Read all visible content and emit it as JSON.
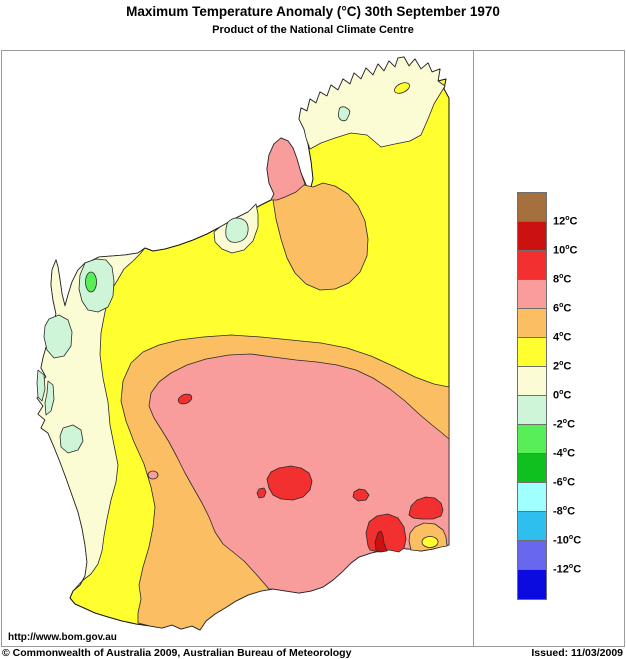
{
  "header": {
    "title": "Maximum Temperature Anomaly (°C)  30th September 1970",
    "subtitle": "Product of the National Climate Centre"
  },
  "map_panel": {
    "url_text": "http://www.bom.gov.au",
    "region_name": "Western Australia"
  },
  "footer": {
    "copyright": "© Commonwealth of Australia 2009, Australian Bureau of Meteorology",
    "issued": "Issued: 11/03/2009"
  },
  "colors": {
    "brown": "#a5703d",
    "dark_red": "#cc1111",
    "red": "#f23030",
    "pink": "#f99c9c",
    "orange": "#fbbe62",
    "yellow": "#ffff30",
    "cream": "#fcfcd4",
    "pale_green": "#cff5d9",
    "light_green": "#57ee57",
    "green": "#0fc01f",
    "pale_cyan": "#a0ffff",
    "cyan": "#2fbfef",
    "blue_violet": "#6868ef",
    "blue": "#0b0bdf",
    "coast_line": "#111111",
    "frame_gray": "#9a9a9a"
  },
  "legend": {
    "entries": [
      {
        "band": "> 12",
        "color": "#a5703d"
      },
      {
        "band": "10 to 12",
        "color": "#cc1111"
      },
      {
        "band": "8 to 10",
        "color": "#f23030"
      },
      {
        "band": "6 to 8",
        "color": "#f99c9c"
      },
      {
        "band": "4 to 6",
        "color": "#fbbe62"
      },
      {
        "band": "2 to 4",
        "color": "#ffff30"
      },
      {
        "band": "0 to 2",
        "color": "#fcfcd4"
      },
      {
        "band": "-2 to 0",
        "color": "#cff5d9"
      },
      {
        "band": "-4 to -2",
        "color": "#57ee57"
      },
      {
        "band": "-6 to -4",
        "color": "#0fc01f"
      },
      {
        "band": "-8 to -6",
        "color": "#a0ffff"
      },
      {
        "band": "-10 to -8",
        "color": "#2fbfef"
      },
      {
        "band": "-12 to -10",
        "color": "#6868ef"
      },
      {
        "band": "< -12",
        "color": "#0b0bdf"
      }
    ],
    "tick_labels": [
      "12°C",
      "10°C",
      "8°C",
      "6°C",
      "4°C",
      "2°C",
      "0°C",
      "-2°C",
      "-4°C",
      "-6°C",
      "-8°C",
      "-10°C",
      "-12°C"
    ]
  },
  "chart_data": {
    "type": "heatmap",
    "subtype": "contour-anomaly-map",
    "title": "Maximum Temperature Anomaly (°C)  30th September 1970",
    "region": "Western Australia",
    "unit": "°C",
    "scale_ticks": [
      12,
      10,
      8,
      6,
      4,
      2,
      0,
      -2,
      -4,
      -6,
      -8,
      -10,
      -12
    ],
    "legend_position": "right",
    "regions": [
      {
        "area": "Kimberley (far north)",
        "anomaly_c": "0 to 2"
      },
      {
        "area": "NE corner and most of north/east",
        "anomaly_c": "2 to 4"
      },
      {
        "area": "Dampier Peninsula (Broome)",
        "anomaly_c": "6 to 8"
      },
      {
        "area": "Great Sandy Desert blob south-east of Broome",
        "anomaly_c": "4 to 6"
      },
      {
        "area": "Port Hedland coastal pocket",
        "anomaly_c": "0 to 2 with -2 to 0 core"
      },
      {
        "area": "West coastal strip Exmouth to Cape Leeuwin",
        "anomaly_c": "0 to 2"
      },
      {
        "area": "Coastal patches Exmouth/Shark Bay/Geraldton",
        "anomaly_c": "-2 to 0"
      },
      {
        "area": "Small oval near Exmouth",
        "anomaly_c": "-4 to -2"
      },
      {
        "area": "Broad central-southern interior band",
        "anomaly_c": "4 to 6"
      },
      {
        "area": "Large south-central interior core",
        "anomaly_c": "6 to 8"
      },
      {
        "area": "Several interior hot spots",
        "anomaly_c": "8 to 10"
      },
      {
        "area": "Spot near south coast (inside 8-10 blob)",
        "anomaly_c": "10 to 12"
      },
      {
        "area": "South-east coastal pocket",
        "anomaly_c": "4 to 6 with 2 to 4 core"
      }
    ]
  }
}
